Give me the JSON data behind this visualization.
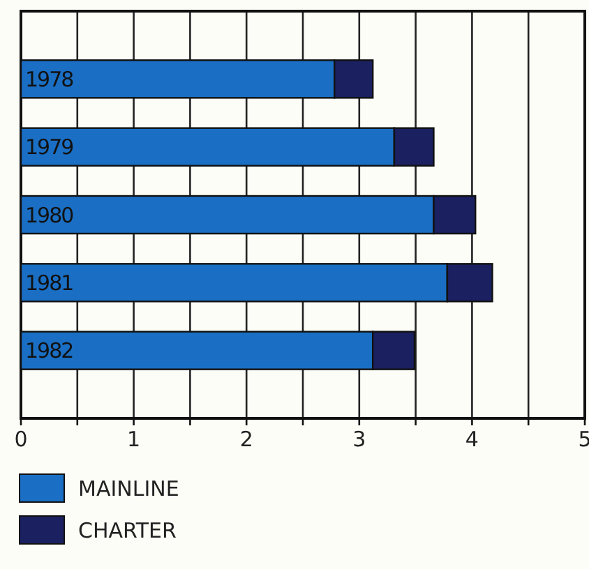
{
  "chart_data": {
    "type": "bar",
    "orientation": "horizontal",
    "stacked": true,
    "categories": [
      "1978",
      "1979",
      "1980",
      "1981",
      "1982"
    ],
    "series": [
      {
        "name": "MAINLINE",
        "color": "#1a6fc4",
        "values": [
          2.78,
          3.31,
          3.66,
          3.78,
          3.12
        ]
      },
      {
        "name": "CHARTER",
        "color": "#1a2060",
        "values": [
          0.34,
          0.35,
          0.37,
          0.4,
          0.37
        ]
      }
    ],
    "xlim": [
      0,
      5
    ],
    "xticks": [
      0,
      {
        "value": 0.5,
        "label": null
      },
      1,
      {
        "value": 1.5,
        "label": null
      },
      2,
      {
        "value": 2.5,
        "label": null
      },
      3,
      {
        "value": 3.5,
        "label": null
      },
      4,
      {
        "value": 4.5,
        "label": null
      },
      5
    ],
    "grid": "x",
    "legend": "bottom left"
  }
}
